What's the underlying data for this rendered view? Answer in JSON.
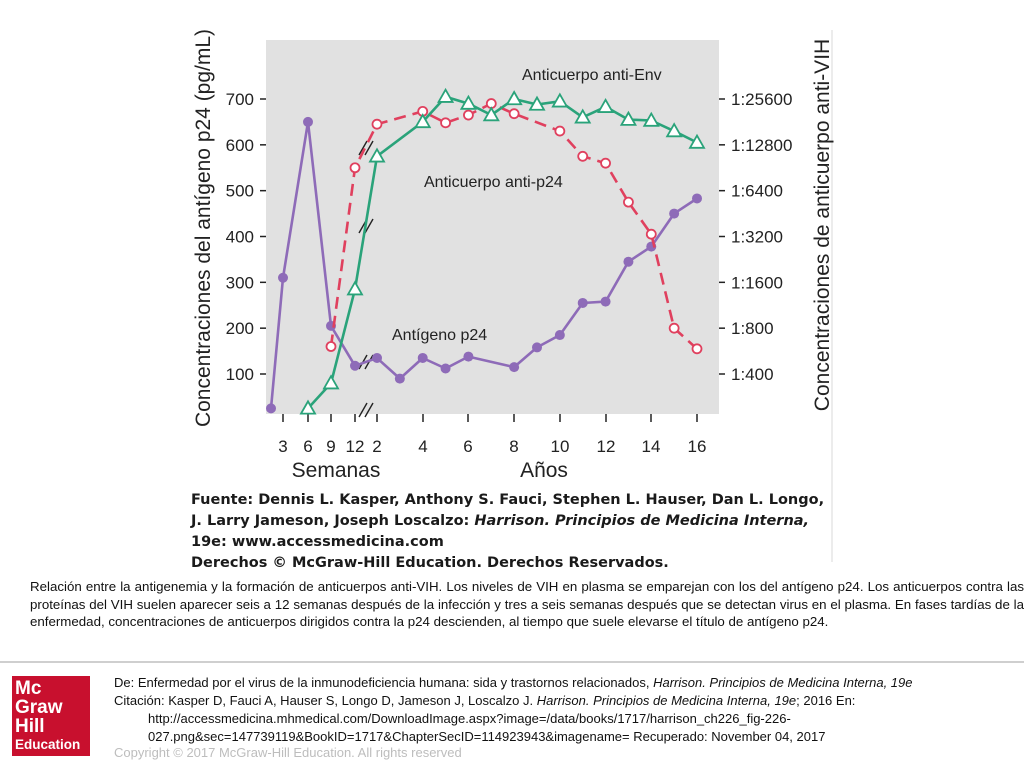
{
  "chart_data": {
    "type": "line",
    "ylabel_left": "Concentraciones del antígeno p24 (pg/mL)",
    "ylabel_right": "Concentraciones de anticuerpo anti-VIH",
    "xlabel_weeks": "Semanas",
    "xlabel_years": "Años",
    "x_ticks": [
      "3",
      "6",
      "9",
      "12",
      "2",
      "4",
      "6",
      "8",
      "10",
      "12",
      "14",
      "16"
    ],
    "y_ticks_left": [
      100,
      200,
      300,
      400,
      500,
      600,
      700
    ],
    "y_ticks_right": [
      "1:400",
      "1:800",
      "1:1600",
      "1:3200",
      "1:6400",
      "1:12800",
      "1:25600"
    ],
    "ylim": [
      30,
      760
    ],
    "grid": false,
    "series": [
      {
        "name": "Antígeno p24",
        "color": "#8e6bb8",
        "marker": "filled-circle",
        "x": [
          "2",
          "3 semanas",
          "6 semanas",
          "9 semanas",
          "12 semanas",
          "2 años",
          "3 años",
          "4 años",
          "5 años",
          "6 años",
          "8 años",
          "9 años",
          "10 años",
          "11 años",
          "12 años",
          "13 años",
          "14 años",
          "15 años",
          "16 años"
        ],
        "values": [
          25,
          310,
          650,
          205,
          118,
          135,
          90,
          135,
          112,
          138,
          115,
          158,
          185,
          255,
          258,
          345,
          378,
          450,
          483
        ]
      },
      {
        "name": "Anticuerpo anti-p24",
        "color": "#e0405e",
        "marker": "open-circle",
        "x": [
          "9 semanas",
          "12 semanas",
          "2 años",
          "4 años",
          "5 años",
          "6 años",
          "7 años",
          "8 años",
          "10 años",
          "11 años",
          "12 años",
          "13 años",
          "14 años",
          "15 años",
          "16 años"
        ],
        "values": [
          160,
          550,
          645,
          673,
          648,
          665,
          690,
          668,
          630,
          575,
          560,
          475,
          405,
          200,
          155
        ]
      },
      {
        "name": "Anticuerpo anti-Env",
        "color": "#2aa37a",
        "marker": "open-triangle",
        "x": [
          "6 semanas",
          "9 semanas",
          "12 semanas",
          "2 años",
          "4 años",
          "5 años",
          "6 años",
          "7 años",
          "8 años",
          "9 años",
          "10 años",
          "11 años",
          "12 años",
          "13 años",
          "14 años",
          "15 años",
          "16 años"
        ],
        "values": [
          25,
          80,
          285,
          575,
          650,
          705,
          690,
          665,
          700,
          688,
          695,
          660,
          683,
          655,
          653,
          630,
          605
        ]
      }
    ]
  },
  "source": {
    "prefix": "Fuente: Dennis L. Kasper, Anthony S. Fauci, Stephen L. Hauser, Dan L. Longo,",
    "line2_plain": "J. Larry Jameson, Joseph Loscalzo: ",
    "line2_italic": "Harrison. Principios de Medicina Interna,",
    "line3": "19e: www.accessmedicina.com",
    "line4": "Derechos © McGraw-Hill Education. Derechos Reservados."
  },
  "caption": "Relación entre la antigenemia y la formación de anticuerpos anti-VIH. Los niveles de VIH en plasma se emparejan con los del antígeno p24. Los anticuerpos contra las proteínas del VIH suelen aparecer seis a 12 semanas después de la infección y tres a seis semanas después que se detectan virus en el plasma. En fases tardías de la enfermedad, concentraciones de anticuerpos dirigidos contra la p24 descienden, al tiempo que suele elevarse el título de antígeno p24.",
  "logo": {
    "line1": "Mc",
    "line2": "Graw",
    "line3": "Hill",
    "line4": "Education"
  },
  "footer": {
    "de_plain": "De: Enfermedad por el virus de la inmunodeficiencia humana: sida y trastornos relacionados, ",
    "de_italic": "Harrison. Principios de Medicina Interna, 19e",
    "cit_plain": "Citación: Kasper D, Fauci A, Hauser S, Longo D, Jameson J, Loscalzo J",
    "cit_dot": ". ",
    "cit_italic": "Harrison. Principios de Medicina Interna, 19e",
    "cit_rest": "; 2016 En:",
    "url1": "http://accessmedicina.mhmedical.com/DownloadImage.aspx?image=/data/books/1717/harrison_ch226_fig-226-",
    "url2": "027.png&sec=147739119&BookID=1717&ChapterSecID=114923943&imagename= Recuperado: November 04, 2017",
    "copyright": "Copyright © 2017 McGraw-Hill Education. All rights reserved"
  }
}
